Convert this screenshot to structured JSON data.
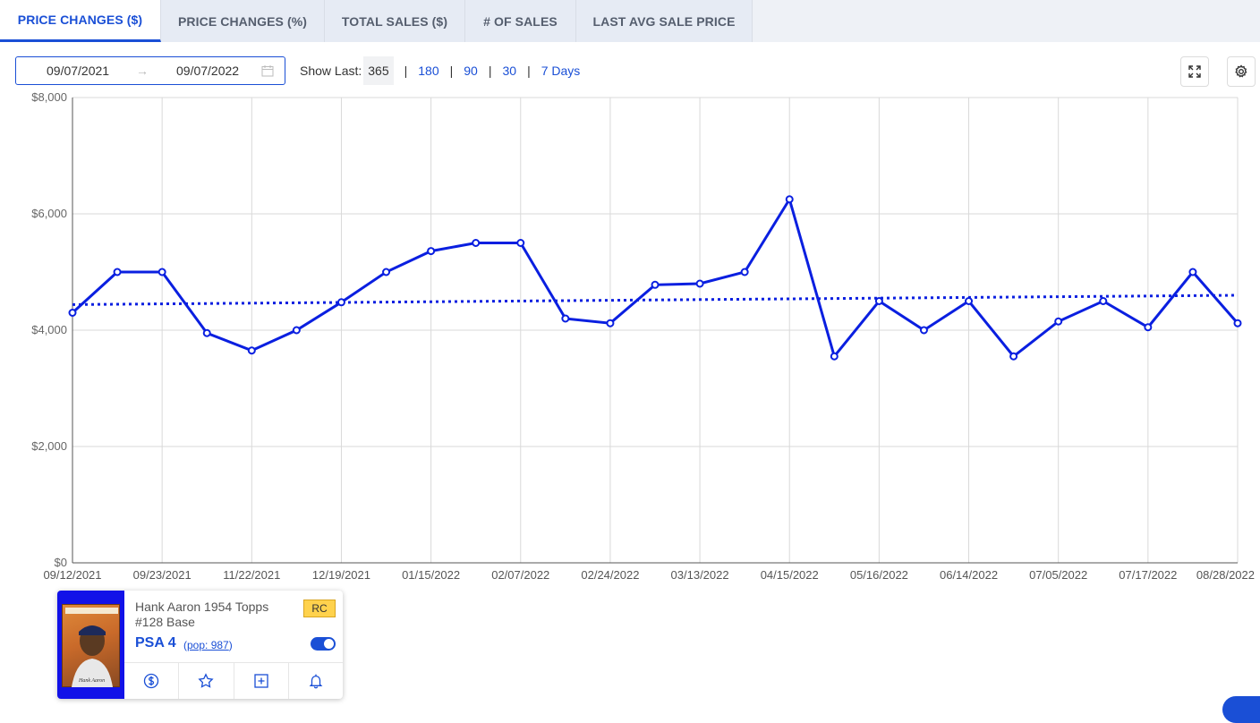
{
  "tabs": [
    {
      "label": "PRICE CHANGES ($)",
      "active": true
    },
    {
      "label": "PRICE CHANGES (%)",
      "active": false
    },
    {
      "label": "TOTAL SALES ($)",
      "active": false
    },
    {
      "label": "# OF SALES",
      "active": false
    },
    {
      "label": "LAST AVG SALE PRICE",
      "active": false
    }
  ],
  "date_range": {
    "start": "09/07/2021",
    "arrow": "→",
    "end": "09/07/2022"
  },
  "show_last": {
    "label": "Show Last:",
    "current": "365",
    "options": [
      "180",
      "90",
      "30",
      "7 Days"
    ]
  },
  "icons": {
    "fullscreen": "expand-icon",
    "settings": "gear-icon",
    "calendar": "calendar-icon"
  },
  "colors": {
    "accent": "#1a4fd6",
    "line": "#0a1fe0",
    "grid": "#d9d9d9"
  },
  "chart_data": {
    "type": "line",
    "title": "",
    "xlabel": "",
    "ylabel": "",
    "ylim": [
      0,
      8000
    ],
    "y_ticks": [
      "$0",
      "$2,000",
      "$4,000",
      "$6,000",
      "$8,000"
    ],
    "x_tick_labels": [
      "09/12/2021",
      "09/23/2021",
      "11/22/2021",
      "12/19/2021",
      "01/15/2022",
      "02/07/2022",
      "02/24/2022",
      "03/13/2022",
      "04/15/2022",
      "05/16/2022",
      "06/14/2022",
      "07/05/2022",
      "07/17/2022",
      "08/28/2022"
    ],
    "grid": true,
    "legend": "none",
    "series": [
      {
        "values": [
          4300,
          5000,
          5000,
          3950,
          3650,
          4000,
          4480,
          5000,
          5360,
          5500,
          5500,
          4200,
          4120,
          4780,
          4800,
          5000,
          6250,
          3550,
          4500,
          4000,
          4500,
          3550,
          4150,
          4500,
          4050,
          5000,
          4120
        ],
        "markers": true,
        "style": "solid"
      },
      {
        "values": [
          4440,
          4600
        ],
        "style": "dotted",
        "kind": "trendline"
      }
    ]
  },
  "card": {
    "name_line1": "Hank Aaron 1954 Topps",
    "name_line2": "#128 Base",
    "badge": "RC",
    "grade": "PSA 4",
    "pop": "pop: 987",
    "toggle_on": true,
    "actions": [
      "dollar-icon",
      "star-icon",
      "plus-square-icon",
      "bell-icon"
    ]
  }
}
